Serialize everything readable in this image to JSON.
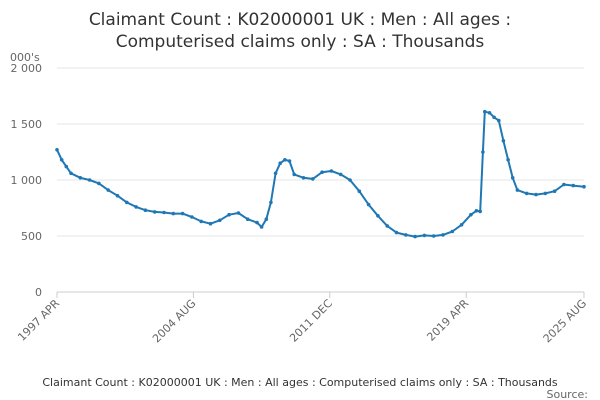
{
  "chart_data": {
    "type": "line",
    "title_line1": "Claimant Count : K02000001 UK : Men : All ages :",
    "title_line2": "Computerised claims only : SA : Thousands",
    "ylabel": "000's",
    "ylim": [
      0,
      2000
    ],
    "yticks": [
      "0",
      "500",
      "1 000",
      "1 500",
      "2 000"
    ],
    "ytick_values": [
      0,
      500,
      1000,
      1500,
      2000
    ],
    "xticks": [
      "1997 APR",
      "2004 AUG",
      "2011 DEC",
      "2019 APR",
      "2025 AUG"
    ],
    "xtick_values": [
      1997.25,
      2004.583,
      2011.917,
      2019.25,
      2025.583
    ],
    "xlim": [
      1997.25,
      2025.583
    ],
    "grid": true,
    "series_color": "#1f78b4",
    "series": [
      {
        "x": [
          1997.25,
          1997.5,
          1997.75,
          1998.0,
          1998.5,
          1999.0,
          1999.5,
          2000.0,
          2000.5,
          2001.0,
          2001.5,
          2002.0,
          2002.5,
          2003.0,
          2003.5,
          2004.0,
          2004.5,
          2005.0,
          2005.5,
          2006.0,
          2006.5,
          2007.0,
          2007.5,
          2008.0,
          2008.25,
          2008.5,
          2008.75,
          2009.0,
          2009.25,
          2009.5,
          2009.75,
          2010.0,
          2010.5,
          2011.0,
          2011.5,
          2012.0,
          2012.5,
          2013.0,
          2013.5,
          2014.0,
          2014.5,
          2015.0,
          2015.5,
          2016.0,
          2016.5,
          2017.0,
          2017.5,
          2018.0,
          2018.5,
          2019.0,
          2019.5,
          2019.8,
          2020.0,
          2020.15,
          2020.25,
          2020.5,
          2020.75,
          2021.0,
          2021.25,
          2021.5,
          2021.75,
          2022.0,
          2022.5,
          2023.0,
          2023.5,
          2024.0,
          2024.5,
          2025.0,
          2025.583
        ],
        "values": [
          1270,
          1180,
          1120,
          1060,
          1020,
          1000,
          970,
          910,
          860,
          800,
          760,
          730,
          715,
          710,
          700,
          700,
          670,
          630,
          610,
          640,
          690,
          705,
          650,
          620,
          580,
          650,
          800,
          1060,
          1150,
          1180,
          1170,
          1050,
          1020,
          1010,
          1070,
          1080,
          1050,
          1000,
          900,
          780,
          680,
          590,
          530,
          510,
          495,
          505,
          500,
          510,
          540,
          600,
          690,
          725,
          720,
          1250,
          1610,
          1600,
          1560,
          1530,
          1350,
          1180,
          1020,
          910,
          880,
          870,
          880,
          900,
          960,
          950,
          940
        ]
      }
    ],
    "footer": "Claimant Count : K02000001 UK : Men : All ages : Computerised claims only : SA : Thousands",
    "source": "Source:"
  }
}
